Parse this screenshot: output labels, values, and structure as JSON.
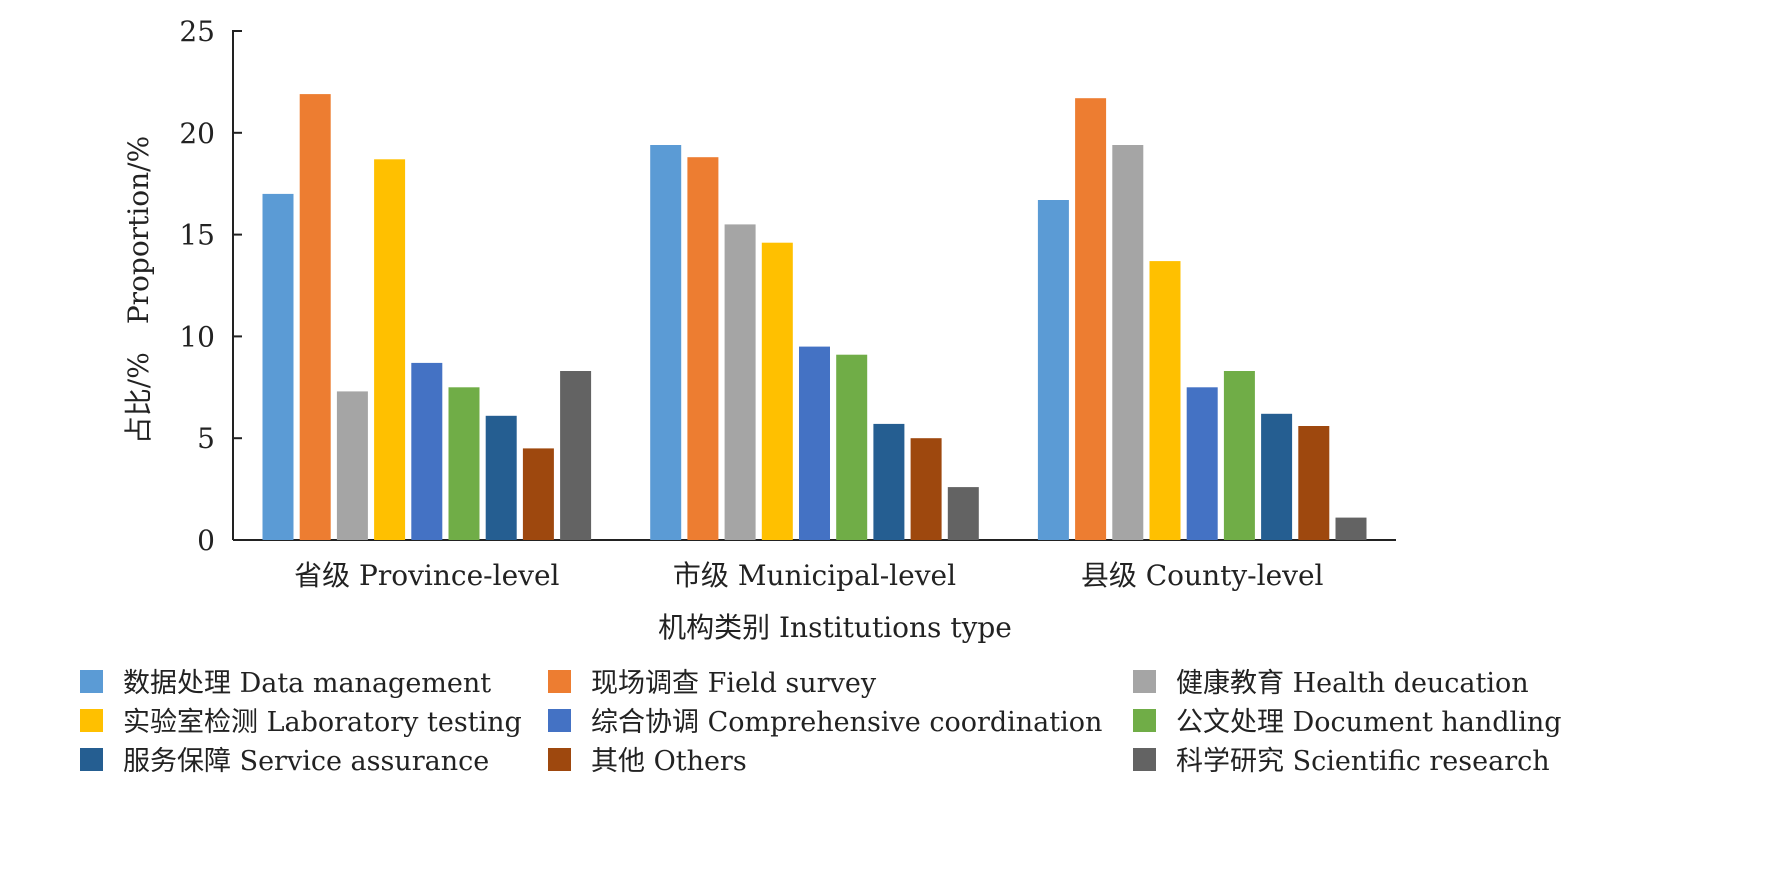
{
  "chart_data": {
    "type": "bar",
    "title": "",
    "xlabel": "机构类别 Institutions type",
    "ylabel": "占比/%　Proportion/%",
    "ylim": [
      0,
      25
    ],
    "yticks": [
      0,
      5,
      10,
      15,
      20,
      25
    ],
    "grid": false,
    "legend_position": "bottom",
    "categories": [
      "省级 Province-level",
      "市级 Municipal-level",
      "县级 County-level"
    ],
    "series": [
      {
        "name": "数据处理 Data management",
        "color": "#5b9bd5",
        "values": [
          17.0,
          19.4,
          16.7
        ]
      },
      {
        "name": "现场调查 Field survey",
        "color": "#ed7d31",
        "values": [
          21.9,
          18.8,
          21.7
        ]
      },
      {
        "name": "健康教育 Health deucation",
        "color": "#a5a5a5",
        "values": [
          7.3,
          15.5,
          19.4
        ]
      },
      {
        "name": "实验室检测 Laboratory testing",
        "color": "#ffc000",
        "values": [
          18.7,
          14.6,
          13.7
        ]
      },
      {
        "name": "综合协调 Comprehensive coordination",
        "color": "#4472c4",
        "values": [
          8.7,
          9.5,
          7.5
        ]
      },
      {
        "name": "公文处理 Document handling",
        "color": "#70ad47",
        "values": [
          7.5,
          9.1,
          8.3
        ]
      },
      {
        "name": "服务保障 Service assurance",
        "color": "#255e91",
        "values": [
          6.1,
          5.7,
          6.2
        ]
      },
      {
        "name": "其他 Others",
        "color": "#9e480e",
        "values": [
          4.5,
          5.0,
          5.6
        ]
      },
      {
        "name": "科学研究 Scientific research",
        "color": "#636363",
        "values": [
          8.3,
          2.6,
          1.1
        ]
      }
    ]
  }
}
